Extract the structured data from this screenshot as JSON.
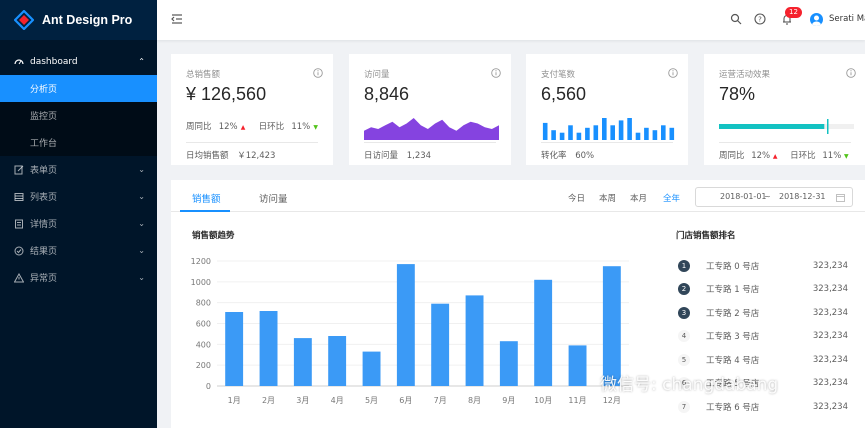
{
  "app": {
    "title": "Ant Design Pro"
  },
  "sidebar": {
    "dashboard": {
      "label": "dashboard",
      "icon": "dashboard-icon"
    },
    "dashboard_items": [
      "分析页",
      "监控页",
      "工作台"
    ],
    "groups": [
      {
        "label": "表单页",
        "icon": "form-icon"
      },
      {
        "label": "列表页",
        "icon": "table-icon"
      },
      {
        "label": "详情页",
        "icon": "profile-icon"
      },
      {
        "label": "结果页",
        "icon": "check-circle-icon"
      },
      {
        "label": "异常页",
        "icon": "warning-icon"
      }
    ]
  },
  "header": {
    "notification_count": "12",
    "username": "Serati Ma"
  },
  "cards": [
    {
      "label": "总销售额",
      "value": "¥ 126,560",
      "wow_label": "周同比",
      "wow_value": "12%",
      "dod_label": "日环比",
      "dod_value": "11%",
      "foot_label": "日均销售额",
      "foot_value": "￥12,423"
    },
    {
      "label": "访问量",
      "value": "8,846",
      "foot_label": "日访问量",
      "foot_value": "1,234",
      "area_values": [
        5,
        7,
        6,
        8,
        10,
        7,
        9,
        12,
        8,
        6,
        9,
        11,
        7,
        5,
        8,
        10,
        9,
        7,
        6,
        8
      ]
    },
    {
      "label": "支付笔数",
      "value": "6,560",
      "foot_label": "转化率",
      "foot_value": "60%",
      "bar_values": [
        7,
        4,
        3,
        6,
        3,
        5,
        6,
        9,
        6,
        8,
        9,
        3,
        5,
        4,
        6,
        5
      ]
    },
    {
      "label": "运营活动效果",
      "value": "78%",
      "progress": 0.78,
      "target": 0.8,
      "wow_label": "周同比",
      "wow_value": "12%",
      "dod_label": "日环比",
      "dod_value": "11%"
    }
  ],
  "sales": {
    "tabs": [
      "销售额",
      "访问量"
    ],
    "ranges": [
      "今日",
      "本周",
      "本月",
      "全年"
    ],
    "date_start": "2018-01-01",
    "date_sep": "~",
    "date_end": "2018-12-31",
    "chart_title": "销售额趋势",
    "rank_title": "门店销售额排名",
    "rank": [
      {
        "num": "1",
        "name": "工专路 0 号店",
        "value": "323,234"
      },
      {
        "num": "2",
        "name": "工专路 1 号店",
        "value": "323,234"
      },
      {
        "num": "3",
        "name": "工专路 2 号店",
        "value": "323,234"
      },
      {
        "num": "4",
        "name": "工专路 3 号店",
        "value": "323,234"
      },
      {
        "num": "5",
        "name": "工专路 4 号店",
        "value": "323,234"
      },
      {
        "num": "6",
        "name": "工专路 5 号店",
        "value": "323,234"
      },
      {
        "num": "7",
        "name": "工专路 6 号店",
        "value": "323,234"
      }
    ]
  },
  "chart_data": {
    "type": "bar",
    "title": "销售额趋势",
    "categories": [
      "1月",
      "2月",
      "3月",
      "4月",
      "5月",
      "6月",
      "7月",
      "8月",
      "9月",
      "10月",
      "11月",
      "12月"
    ],
    "values": [
      710,
      720,
      460,
      480,
      330,
      1170,
      790,
      870,
      430,
      1020,
      390,
      1150
    ],
    "yticks": [
      0,
      200,
      400,
      600,
      800,
      1000,
      1200
    ],
    "ylim": [
      0,
      1200
    ],
    "color": "#3b9af6"
  },
  "watermark": "微信号: changdabang",
  "colors": {
    "primary": "#1890ff",
    "sidebar": "#001529",
    "up": "#f5222d",
    "down": "#52c41a",
    "area": "#8543e0",
    "progress": "#13c2c2"
  }
}
